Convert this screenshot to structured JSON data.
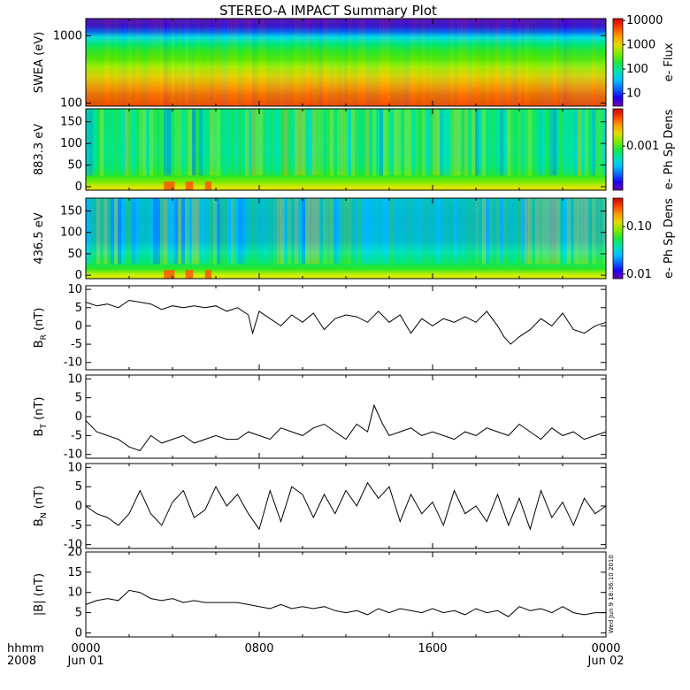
{
  "title": "STEREO-A IMPACT Summary Plot",
  "stamp": "Wed Jun  9 18:36:10 2010",
  "time_axis": {
    "label_line1": "hhmm",
    "label_line2": "2008",
    "ticks": [
      {
        "hour": 0,
        "l1": "0000",
        "l2": "Jun 01"
      },
      {
        "hour": 8,
        "l1": "0800",
        "l2": ""
      },
      {
        "hour": 16,
        "l1": "1600",
        "l2": ""
      },
      {
        "hour": 24,
        "l1": "0000",
        "l2": "Jun 02"
      }
    ]
  },
  "colors": {
    "line": "#000000",
    "background": "#ffffff"
  },
  "chart_data": [
    {
      "type": "heatmap",
      "name": "swea",
      "ylabel": "SWEA (eV)",
      "yscale": "log",
      "ylim": [
        90,
        1800
      ],
      "yticks": [
        {
          "v": 100,
          "label": "100"
        },
        {
          "v": 1000,
          "label": "1000"
        }
      ],
      "colorbar": {
        "label": "e- Flux",
        "scale": "log",
        "range": [
          3,
          12000
        ],
        "ticks": [
          {
            "v": 10,
            "label": "10"
          },
          {
            "v": 100,
            "label": "100"
          },
          {
            "v": 1000,
            "label": "1000"
          },
          {
            "v": 10000,
            "label": "10000"
          }
        ]
      },
      "profile": [
        {
          "ev": 1800,
          "level": 0.02
        },
        {
          "ev": 1400,
          "level": 0.06
        },
        {
          "ev": 1150,
          "level": 0.18
        },
        {
          "ev": 950,
          "level": 0.34
        },
        {
          "ev": 750,
          "level": 0.45
        },
        {
          "ev": 600,
          "level": 0.52
        },
        {
          "ev": 450,
          "level": 0.57
        },
        {
          "ev": 350,
          "level": 0.63
        },
        {
          "ev": 250,
          "level": 0.72
        },
        {
          "ev": 180,
          "level": 0.8
        },
        {
          "ev": 130,
          "level": 0.86
        },
        {
          "ev": 100,
          "level": 0.89
        },
        {
          "ev": 90,
          "level": 0.9
        }
      ]
    },
    {
      "type": "heatmap",
      "name": "pad883",
      "ylabel": "883.3 eV",
      "ylim": [
        -8,
        180
      ],
      "yticks": [
        {
          "v": 0,
          "label": "0"
        },
        {
          "v": 50,
          "label": "50"
        },
        {
          "v": 100,
          "label": "100"
        },
        {
          "v": 150,
          "label": "150"
        }
      ],
      "colorbar": {
        "label": "e- Ph Sp Dens",
        "scale": "log",
        "range": [
          0.0001,
          0.007
        ],
        "ticks": [
          {
            "v": 0.001,
            "label": "0.001"
          }
        ]
      },
      "profile": [
        {
          "deg": 0,
          "level": 0.68
        },
        {
          "deg": 10,
          "level": 0.6
        },
        {
          "deg": 25,
          "level": 0.52
        },
        {
          "deg": 45,
          "level": 0.44
        },
        {
          "deg": 80,
          "level": 0.42
        },
        {
          "deg": 130,
          "level": 0.43
        },
        {
          "deg": 180,
          "level": 0.44
        }
      ]
    },
    {
      "type": "heatmap",
      "name": "pad436",
      "ylabel": "436.5 eV",
      "ylim": [
        -8,
        180
      ],
      "yticks": [
        {
          "v": 0,
          "label": "0"
        },
        {
          "v": 50,
          "label": "50"
        },
        {
          "v": 100,
          "label": "100"
        },
        {
          "v": 150,
          "label": "150"
        }
      ],
      "colorbar": {
        "label": "e- Ph Sp Dens",
        "scale": "log",
        "range": [
          0.008,
          0.4
        ],
        "ticks": [
          {
            "v": 0.01,
            "label": "0.01"
          },
          {
            "v": 0.1,
            "label": "0.10"
          }
        ]
      },
      "profile": [
        {
          "deg": 0,
          "level": 0.66
        },
        {
          "deg": 15,
          "level": 0.52
        },
        {
          "deg": 35,
          "level": 0.44
        },
        {
          "deg": 55,
          "level": 0.36
        },
        {
          "deg": 80,
          "level": 0.26
        },
        {
          "deg": 130,
          "level": 0.25
        },
        {
          "deg": 180,
          "level": 0.27
        }
      ]
    },
    {
      "type": "line",
      "name": "br",
      "ylabel": "B",
      "ysub": "R",
      "yunit": "(nT)",
      "ylim": [
        -12,
        11
      ],
      "yticks": [
        {
          "v": -10,
          "label": "-10"
        },
        {
          "v": -5,
          "label": "-5"
        },
        {
          "v": 0,
          "label": "0"
        },
        {
          "v": 5,
          "label": "5"
        },
        {
          "v": 10,
          "label": "10"
        }
      ],
      "x_hours": [
        0,
        0.5,
        1,
        1.5,
        2,
        2.5,
        3,
        3.5,
        4,
        4.5,
        5,
        5.5,
        6,
        6.5,
        7,
        7.5,
        7.7,
        8,
        8.5,
        9,
        9.5,
        10,
        10.5,
        11,
        11.5,
        12,
        12.5,
        13,
        13.5,
        14,
        14.5,
        15,
        15.5,
        16,
        16.5,
        17,
        17.5,
        18,
        18.5,
        19,
        19.3,
        19.6,
        20,
        20.5,
        21,
        21.5,
        22,
        22.5,
        23,
        23.5,
        24
      ],
      "values": [
        6.5,
        5.5,
        6,
        5,
        7,
        6.5,
        6,
        4.5,
        5.5,
        5,
        5.5,
        5,
        5.5,
        4,
        5,
        3,
        -2,
        4,
        2,
        0,
        3,
        1,
        3.5,
        -1,
        2,
        3,
        2.5,
        1,
        4,
        1,
        3,
        -2,
        2,
        0,
        2,
        1,
        2.5,
        1,
        4,
        0,
        -3,
        -5,
        -3,
        -1,
        2,
        0,
        3.5,
        -1,
        -2,
        0,
        1
      ]
    },
    {
      "type": "line",
      "name": "bt",
      "ylabel": "B",
      "ysub": "T",
      "yunit": "(nT)",
      "ylim": [
        -11,
        11
      ],
      "yticks": [
        {
          "v": -10,
          "label": "-10"
        },
        {
          "v": -5,
          "label": "-5"
        },
        {
          "v": 0,
          "label": "0"
        },
        {
          "v": 5,
          "label": "5"
        },
        {
          "v": 10,
          "label": "10"
        }
      ],
      "x_hours": [
        0,
        0.5,
        1,
        1.5,
        2,
        2.5,
        3,
        3.5,
        4,
        4.5,
        5,
        5.5,
        6,
        6.5,
        7,
        7.5,
        8,
        8.5,
        9,
        9.5,
        10,
        10.5,
        11,
        11.5,
        12,
        12.5,
        13,
        13.3,
        13.7,
        14,
        14.5,
        15,
        15.5,
        16,
        16.5,
        17,
        17.5,
        18,
        18.5,
        19,
        19.5,
        20,
        20.5,
        21,
        21.5,
        22,
        22.5,
        23,
        23.5,
        24
      ],
      "values": [
        -1,
        -4,
        -5,
        -6,
        -8,
        -9,
        -5,
        -7,
        -6,
        -5,
        -7,
        -6,
        -5,
        -6,
        -6,
        -4,
        -5,
        -6,
        -3,
        -4,
        -5,
        -3,
        -2,
        -4,
        -6,
        -2,
        -4,
        3,
        -2,
        -5,
        -4,
        -3,
        -5,
        -4,
        -5,
        -6,
        -4,
        -5,
        -3,
        -4,
        -5,
        -2,
        -4,
        -6,
        -3,
        -5,
        -4,
        -6,
        -5,
        -4
      ]
    },
    {
      "type": "line",
      "name": "bn",
      "ylabel": "B",
      "ysub": "N",
      "yunit": "(nT)",
      "ylim": [
        -11,
        11
      ],
      "yticks": [
        {
          "v": -10,
          "label": "-10"
        },
        {
          "v": -5,
          "label": "-5"
        },
        {
          "v": 0,
          "label": "0"
        },
        {
          "v": 5,
          "label": "5"
        },
        {
          "v": 10,
          "label": "10"
        }
      ],
      "x_hours": [
        0,
        0.5,
        1,
        1.5,
        2,
        2.5,
        3,
        3.5,
        4,
        4.5,
        5,
        5.5,
        6,
        6.5,
        7,
        7.5,
        8,
        8.5,
        9,
        9.5,
        10,
        10.5,
        11,
        11.5,
        12,
        12.5,
        13,
        13.5,
        14,
        14.5,
        15,
        15.5,
        16,
        16.5,
        17,
        17.5,
        18,
        18.5,
        19,
        19.5,
        20,
        20.5,
        21,
        21.5,
        22,
        22.5,
        23,
        23.5,
        24
      ],
      "values": [
        0,
        -2,
        -3,
        -5,
        -2,
        4,
        -2,
        -5,
        1,
        4,
        -3,
        -1,
        5,
        0,
        3,
        -2,
        -6,
        4,
        -4,
        5,
        3,
        -3,
        3,
        -2,
        4,
        0,
        6,
        2,
        5,
        -4,
        3,
        -2,
        1,
        -5,
        4,
        -2,
        0,
        -4,
        3,
        -5,
        2,
        -6,
        4,
        -3,
        1,
        -5,
        2,
        -2,
        0
      ]
    },
    {
      "type": "line",
      "name": "bmag",
      "ylabel": "|B|",
      "ysub": "",
      "yunit": "(nT)",
      "ylim": [
        -1,
        20
      ],
      "yticks": [
        {
          "v": 0,
          "label": "0"
        },
        {
          "v": 5,
          "label": "5"
        },
        {
          "v": 10,
          "label": "10"
        },
        {
          "v": 15,
          "label": "15"
        },
        {
          "v": 20,
          "label": "20"
        }
      ],
      "x_hours": [
        0,
        0.5,
        1,
        1.5,
        2,
        2.5,
        3,
        3.5,
        4,
        4.5,
        5,
        5.5,
        6,
        6.5,
        7,
        7.5,
        8,
        8.5,
        9,
        9.5,
        10,
        10.5,
        11,
        11.5,
        12,
        12.5,
        13,
        13.5,
        14,
        14.5,
        15,
        15.5,
        16,
        16.5,
        17,
        17.5,
        18,
        18.5,
        19,
        19.5,
        20,
        20.5,
        21,
        21.5,
        22,
        22.5,
        23,
        23.5,
        24
      ],
      "values": [
        7,
        8,
        8.5,
        8,
        10.5,
        10,
        8.5,
        8,
        8.5,
        7.5,
        8,
        7.5,
        7.5,
        7.5,
        7.5,
        7,
        6.5,
        6,
        7,
        6,
        6.5,
        6,
        6.5,
        5.5,
        5,
        5.5,
        4.5,
        6,
        5,
        6,
        5.5,
        5,
        6,
        5,
        5.5,
        4.5,
        6,
        5,
        5.5,
        4,
        6.5,
        5.5,
        6,
        5,
        6.5,
        5,
        4.5,
        5,
        5
      ]
    }
  ]
}
